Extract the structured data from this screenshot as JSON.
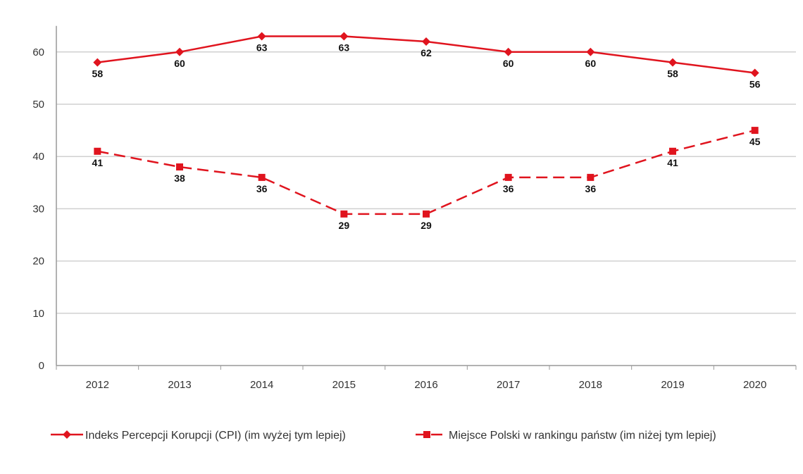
{
  "chart_data": {
    "type": "line",
    "categories": [
      "2012",
      "2013",
      "2014",
      "2015",
      "2016",
      "2017",
      "2018",
      "2019",
      "2020"
    ],
    "series": [
      {
        "name": "Indeks Percepcji Korupcji (CPI) (im wyżej tym lepiej)",
        "values": [
          58,
          60,
          63,
          63,
          62,
          60,
          60,
          58,
          56
        ],
        "color": "#e0141e",
        "marker": "diamond",
        "line": "solid"
      },
      {
        "name": "Miejsce Polski w rankingu państw (im niżej tym lepiej)",
        "values": [
          41,
          38,
          36,
          29,
          29,
          36,
          36,
          41,
          45
        ],
        "color": "#e0141e",
        "marker": "square",
        "line": "dashed"
      }
    ],
    "yticks": [
      0,
      10,
      20,
      30,
      40,
      50,
      60
    ],
    "ylim": [
      0,
      65
    ],
    "grid": true,
    "legend": "bottom",
    "data_labels": true
  }
}
